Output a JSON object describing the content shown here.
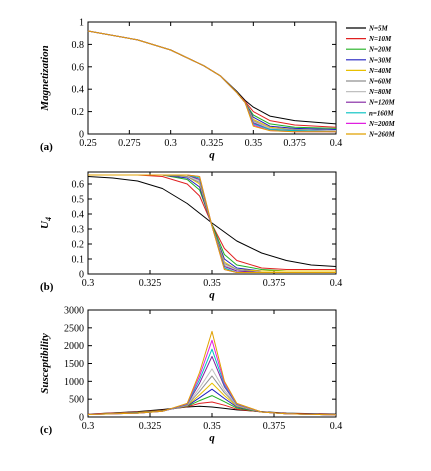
{
  "chart_data": [
    {
      "type": "line",
      "panel_label": "(a)",
      "xlabel": "q",
      "ylabel": "Magnetization",
      "xlim": [
        0.25,
        0.4
      ],
      "ylim": [
        0,
        1
      ],
      "xticks": [
        "0.25",
        "0.275",
        "0.3",
        "0.325",
        "0.35",
        "0.375",
        "0.4"
      ],
      "xtick_values": [
        0.25,
        0.275,
        0.3,
        0.325,
        0.35,
        0.375,
        0.4
      ],
      "yticks": [
        "0",
        "0.2",
        "0.4",
        "0.6",
        "0.8",
        "1"
      ],
      "ytick_values": [
        0,
        0.2,
        0.4,
        0.6,
        0.8,
        1.0
      ],
      "legend": {
        "placement": "outside-right",
        "entries": [
          "N=5M",
          "N=10M",
          "N=20M",
          "N=30M",
          "N=40M",
          "N=60M",
          "N=80M",
          "N=120M",
          "n=160M",
          "N=200M",
          "N=260M"
        ]
      },
      "series": [
        {
          "color": "#000000",
          "x": [
            0.25,
            0.28,
            0.3,
            0.32,
            0.33,
            0.34,
            0.345,
            0.35,
            0.36,
            0.375,
            0.4
          ],
          "values": [
            0.92,
            0.84,
            0.75,
            0.61,
            0.52,
            0.38,
            0.3,
            0.24,
            0.16,
            0.12,
            0.09
          ]
        },
        {
          "color": "#e02020",
          "x": [
            0.25,
            0.28,
            0.3,
            0.32,
            0.33,
            0.34,
            0.345,
            0.35,
            0.36,
            0.375,
            0.4
          ],
          "values": [
            0.92,
            0.84,
            0.75,
            0.61,
            0.52,
            0.37,
            0.29,
            0.2,
            0.12,
            0.08,
            0.06
          ]
        },
        {
          "color": "#20b020",
          "x": [
            0.25,
            0.28,
            0.3,
            0.32,
            0.33,
            0.34,
            0.345,
            0.35,
            0.36,
            0.375,
            0.4
          ],
          "values": [
            0.92,
            0.84,
            0.75,
            0.61,
            0.52,
            0.37,
            0.28,
            0.17,
            0.09,
            0.06,
            0.05
          ]
        },
        {
          "color": "#2020c0",
          "x": [
            0.25,
            0.28,
            0.3,
            0.32,
            0.33,
            0.34,
            0.345,
            0.35,
            0.36,
            0.375,
            0.4
          ],
          "values": [
            0.92,
            0.84,
            0.75,
            0.61,
            0.52,
            0.37,
            0.28,
            0.15,
            0.07,
            0.05,
            0.04
          ]
        },
        {
          "color": "#e8c000",
          "x": [
            0.25,
            0.28,
            0.3,
            0.32,
            0.33,
            0.34,
            0.345,
            0.35,
            0.36,
            0.375,
            0.4
          ],
          "values": [
            0.92,
            0.84,
            0.75,
            0.61,
            0.52,
            0.37,
            0.28,
            0.13,
            0.06,
            0.04,
            0.03
          ]
        },
        {
          "color": "#909090",
          "x": [
            0.25,
            0.28,
            0.3,
            0.32,
            0.33,
            0.34,
            0.345,
            0.35,
            0.36,
            0.375,
            0.4
          ],
          "values": [
            0.92,
            0.84,
            0.75,
            0.61,
            0.52,
            0.37,
            0.28,
            0.12,
            0.05,
            0.04,
            0.03
          ]
        },
        {
          "color": "#c0c0c0",
          "x": [
            0.25,
            0.28,
            0.3,
            0.32,
            0.33,
            0.34,
            0.345,
            0.35,
            0.36,
            0.375,
            0.4
          ],
          "values": [
            0.92,
            0.84,
            0.75,
            0.61,
            0.52,
            0.37,
            0.28,
            0.11,
            0.05,
            0.03,
            0.03
          ]
        },
        {
          "color": "#8020a0",
          "x": [
            0.25,
            0.28,
            0.3,
            0.32,
            0.33,
            0.34,
            0.345,
            0.35,
            0.36,
            0.375,
            0.4
          ],
          "values": [
            0.92,
            0.84,
            0.75,
            0.61,
            0.52,
            0.37,
            0.28,
            0.1,
            0.04,
            0.03,
            0.02
          ]
        },
        {
          "color": "#00c0c0",
          "x": [
            0.25,
            0.28,
            0.3,
            0.32,
            0.33,
            0.34,
            0.345,
            0.35,
            0.36,
            0.375,
            0.4
          ],
          "values": [
            0.92,
            0.84,
            0.75,
            0.61,
            0.52,
            0.37,
            0.28,
            0.09,
            0.04,
            0.03,
            0.02
          ]
        },
        {
          "color": "#e020e0",
          "x": [
            0.25,
            0.28,
            0.3,
            0.32,
            0.33,
            0.34,
            0.345,
            0.35,
            0.36,
            0.375,
            0.4
          ],
          "values": [
            0.92,
            0.84,
            0.75,
            0.61,
            0.52,
            0.37,
            0.28,
            0.08,
            0.03,
            0.02,
            0.02
          ]
        },
        {
          "color": "#e0a000",
          "x": [
            0.25,
            0.28,
            0.3,
            0.32,
            0.33,
            0.34,
            0.345,
            0.35,
            0.36,
            0.375,
            0.4
          ],
          "values": [
            0.92,
            0.84,
            0.75,
            0.61,
            0.52,
            0.37,
            0.28,
            0.07,
            0.03,
            0.02,
            0.02
          ]
        }
      ]
    },
    {
      "type": "line",
      "panel_label": "(b)",
      "xlabel": "q",
      "ylabel": "U4",
      "ylabel_main": "U",
      "ylabel_sub": "4",
      "xlim": [
        0.3,
        0.4
      ],
      "ylim": [
        0,
        0.68
      ],
      "xticks": [
        "0.3",
        "0.325",
        "0.35",
        "0.375",
        "0.4"
      ],
      "xtick_values": [
        0.3,
        0.325,
        0.35,
        0.375,
        0.4
      ],
      "yticks": [
        "0",
        "0.1",
        "0.2",
        "0.3",
        "0.4",
        "0.5",
        "0.6"
      ],
      "ytick_values": [
        0,
        0.1,
        0.2,
        0.3,
        0.4,
        0.5,
        0.6
      ],
      "series": [
        {
          "color": "#000000",
          "x": [
            0.3,
            0.31,
            0.32,
            0.33,
            0.34,
            0.35,
            0.36,
            0.37,
            0.38,
            0.39,
            0.4
          ],
          "values": [
            0.65,
            0.64,
            0.62,
            0.57,
            0.47,
            0.34,
            0.22,
            0.14,
            0.09,
            0.06,
            0.05
          ]
        },
        {
          "color": "#e02020",
          "x": [
            0.3,
            0.32,
            0.33,
            0.34,
            0.345,
            0.35,
            0.355,
            0.36,
            0.37,
            0.38,
            0.4
          ],
          "values": [
            0.66,
            0.66,
            0.65,
            0.6,
            0.52,
            0.33,
            0.17,
            0.09,
            0.04,
            0.03,
            0.03
          ]
        },
        {
          "color": "#20b020",
          "x": [
            0.3,
            0.32,
            0.33,
            0.34,
            0.345,
            0.35,
            0.355,
            0.36,
            0.37,
            0.38,
            0.4
          ],
          "values": [
            0.66,
            0.66,
            0.66,
            0.63,
            0.56,
            0.33,
            0.13,
            0.06,
            0.03,
            0.02,
            0.02
          ]
        },
        {
          "color": "#2020c0",
          "x": [
            0.3,
            0.32,
            0.33,
            0.34,
            0.345,
            0.35,
            0.355,
            0.36,
            0.37,
            0.38,
            0.4
          ],
          "values": [
            0.66,
            0.66,
            0.66,
            0.64,
            0.58,
            0.32,
            0.1,
            0.04,
            0.02,
            0.02,
            0.02
          ]
        },
        {
          "color": "#e8c000",
          "x": [
            0.3,
            0.32,
            0.33,
            0.34,
            0.345,
            0.35,
            0.355,
            0.36,
            0.37,
            0.38,
            0.4
          ],
          "values": [
            0.66,
            0.66,
            0.66,
            0.65,
            0.6,
            0.32,
            0.08,
            0.03,
            0.02,
            0.02,
            0.02
          ]
        },
        {
          "color": "#909090",
          "x": [
            0.3,
            0.32,
            0.33,
            0.34,
            0.345,
            0.35,
            0.355,
            0.36,
            0.37,
            0.38,
            0.4
          ],
          "values": [
            0.66,
            0.66,
            0.66,
            0.65,
            0.61,
            0.32,
            0.07,
            0.03,
            0.01,
            0.01,
            0.01
          ]
        },
        {
          "color": "#c0c0c0",
          "x": [
            0.3,
            0.32,
            0.33,
            0.34,
            0.345,
            0.35,
            0.355,
            0.36,
            0.37,
            0.38,
            0.4
          ],
          "values": [
            0.66,
            0.66,
            0.66,
            0.66,
            0.62,
            0.32,
            0.06,
            0.02,
            0.01,
            0.01,
            0.01
          ]
        },
        {
          "color": "#8020a0",
          "x": [
            0.3,
            0.32,
            0.33,
            0.34,
            0.345,
            0.35,
            0.355,
            0.36,
            0.37,
            0.38,
            0.4
          ],
          "values": [
            0.66,
            0.66,
            0.66,
            0.66,
            0.63,
            0.32,
            0.05,
            0.02,
            0.01,
            0.01,
            0.01
          ]
        },
        {
          "color": "#00c0c0",
          "x": [
            0.3,
            0.32,
            0.33,
            0.34,
            0.345,
            0.35,
            0.355,
            0.36,
            0.37,
            0.38,
            0.4
          ],
          "values": [
            0.66,
            0.66,
            0.66,
            0.66,
            0.64,
            0.32,
            0.04,
            0.01,
            0.01,
            0.01,
            0.01
          ]
        },
        {
          "color": "#e020e0",
          "x": [
            0.3,
            0.32,
            0.33,
            0.34,
            0.345,
            0.35,
            0.355,
            0.36,
            0.37,
            0.38,
            0.4
          ],
          "values": [
            0.66,
            0.66,
            0.66,
            0.66,
            0.65,
            0.32,
            0.03,
            0.01,
            0.01,
            0.01,
            0.01
          ]
        },
        {
          "color": "#e0a000",
          "x": [
            0.3,
            0.32,
            0.33,
            0.34,
            0.345,
            0.35,
            0.355,
            0.36,
            0.37,
            0.38,
            0.4
          ],
          "values": [
            0.66,
            0.66,
            0.66,
            0.66,
            0.65,
            0.32,
            0.03,
            0.01,
            0.01,
            0.01,
            0.01
          ]
        }
      ]
    },
    {
      "type": "line",
      "panel_label": "(c)",
      "xlabel": "q",
      "ylabel": "Susceptibility",
      "xlim": [
        0.3,
        0.4
      ],
      "ylim": [
        0,
        3000
      ],
      "xticks": [
        "0.3",
        "0.325",
        "0.35",
        "0.375",
        "0.4"
      ],
      "xtick_values": [
        0.3,
        0.325,
        0.35,
        0.375,
        0.4
      ],
      "yticks": [
        "0",
        "500",
        "1000",
        "1500",
        "2000",
        "2500",
        "3000"
      ],
      "ytick_values": [
        0,
        500,
        1000,
        1500,
        2000,
        2500,
        3000
      ],
      "series": [
        {
          "color": "#000000",
          "x": [
            0.3,
            0.32,
            0.33,
            0.34,
            0.345,
            0.35,
            0.355,
            0.36,
            0.37,
            0.38,
            0.4
          ],
          "values": [
            80,
            150,
            210,
            280,
            300,
            280,
            240,
            200,
            150,
            110,
            80
          ]
        },
        {
          "color": "#e02020",
          "x": [
            0.3,
            0.32,
            0.33,
            0.34,
            0.345,
            0.35,
            0.355,
            0.36,
            0.37,
            0.38,
            0.4
          ],
          "values": [
            80,
            140,
            190,
            290,
            380,
            420,
            330,
            220,
            140,
            100,
            70
          ]
        },
        {
          "color": "#20b020",
          "x": [
            0.3,
            0.32,
            0.33,
            0.34,
            0.345,
            0.35,
            0.355,
            0.36,
            0.37,
            0.38,
            0.4
          ],
          "values": [
            70,
            130,
            180,
            300,
            460,
            600,
            430,
            250,
            140,
            90,
            60
          ]
        },
        {
          "color": "#2020c0",
          "x": [
            0.3,
            0.32,
            0.33,
            0.34,
            0.345,
            0.35,
            0.355,
            0.36,
            0.37,
            0.38,
            0.4
          ],
          "values": [
            70,
            120,
            170,
            310,
            540,
            780,
            520,
            280,
            140,
            90,
            60
          ]
        },
        {
          "color": "#e8c000",
          "x": [
            0.3,
            0.32,
            0.33,
            0.34,
            0.345,
            0.35,
            0.355,
            0.36,
            0.37,
            0.38,
            0.4
          ],
          "values": [
            70,
            120,
            170,
            320,
            620,
            950,
            600,
            300,
            140,
            90,
            60
          ]
        },
        {
          "color": "#909090",
          "x": [
            0.3,
            0.32,
            0.33,
            0.34,
            0.345,
            0.35,
            0.355,
            0.36,
            0.37,
            0.38,
            0.4
          ],
          "values": [
            70,
            110,
            160,
            330,
            720,
            1150,
            680,
            320,
            140,
            90,
            60
          ]
        },
        {
          "color": "#c0c0c0",
          "x": [
            0.3,
            0.32,
            0.33,
            0.34,
            0.345,
            0.35,
            0.355,
            0.36,
            0.37,
            0.38,
            0.4
          ],
          "values": [
            70,
            110,
            160,
            340,
            820,
            1350,
            750,
            330,
            140,
            90,
            60
          ]
        },
        {
          "color": "#8020a0",
          "x": [
            0.3,
            0.32,
            0.33,
            0.34,
            0.345,
            0.35,
            0.355,
            0.36,
            0.37,
            0.38,
            0.4
          ],
          "values": [
            70,
            110,
            160,
            350,
            950,
            1700,
            850,
            350,
            140,
            90,
            60
          ]
        },
        {
          "color": "#00c0c0",
          "x": [
            0.3,
            0.32,
            0.33,
            0.34,
            0.345,
            0.35,
            0.355,
            0.36,
            0.37,
            0.38,
            0.4
          ],
          "values": [
            70,
            110,
            160,
            360,
            1050,
            1900,
            900,
            360,
            140,
            90,
            60
          ]
        },
        {
          "color": "#e020e0",
          "x": [
            0.3,
            0.32,
            0.33,
            0.34,
            0.345,
            0.35,
            0.355,
            0.36,
            0.37,
            0.38,
            0.4
          ],
          "values": [
            70,
            110,
            160,
            370,
            1150,
            2150,
            950,
            370,
            140,
            90,
            60
          ]
        },
        {
          "color": "#e0a000",
          "x": [
            0.3,
            0.32,
            0.33,
            0.34,
            0.345,
            0.35,
            0.355,
            0.36,
            0.37,
            0.38,
            0.4
          ],
          "values": [
            70,
            110,
            160,
            380,
            1250,
            2400,
            1000,
            380,
            140,
            90,
            60
          ]
        }
      ]
    }
  ]
}
